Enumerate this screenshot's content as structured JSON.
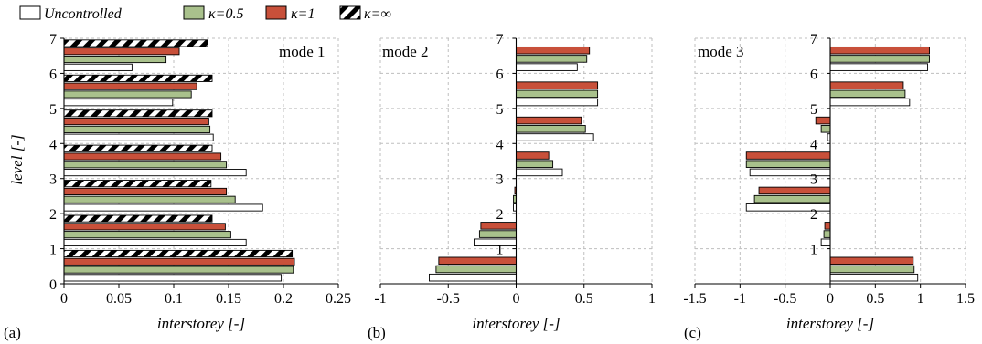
{
  "legend": [
    {
      "label": "Uncontrolled",
      "key": "uncontrolled"
    },
    {
      "label": "κ=0.5",
      "key": "k05"
    },
    {
      "label": "κ=1",
      "key": "k1"
    },
    {
      "label": "κ=∞",
      "key": "kinf"
    }
  ],
  "colors": {
    "uncontrolled": "#ffffff",
    "k05": "#a9c18c",
    "k1": "#c8503a",
    "kinf": "#ffffff",
    "grid": "#bfbfbf",
    "stroke": "#000000"
  },
  "shared_ylabel": "level [-]",
  "chart_data": [
    {
      "type": "bar",
      "orientation": "horizontal",
      "panel_label": "(a)",
      "title": "mode 1",
      "xlabel": "interstorey [-]",
      "xlim": [
        0,
        0.25
      ],
      "xticks": [
        "0",
        "0.05",
        "0.1",
        "0.15",
        "0.2",
        "0.25"
      ],
      "ylim": [
        0,
        7
      ],
      "yticks": [
        "0",
        "1",
        "2",
        "3",
        "4",
        "5",
        "6",
        "7"
      ],
      "categories": [
        "1",
        "2",
        "3",
        "4",
        "5",
        "6",
        "7"
      ],
      "series": [
        {
          "name": "Uncontrolled",
          "key": "uncontrolled",
          "values": [
            0.198,
            0.166,
            0.181,
            0.166,
            0.136,
            0.099,
            0.062
          ]
        },
        {
          "name": "κ=0.5",
          "key": "k05",
          "values": [
            0.209,
            0.152,
            0.156,
            0.148,
            0.133,
            0.116,
            0.093
          ]
        },
        {
          "name": "κ=1",
          "key": "k1",
          "values": [
            0.21,
            0.147,
            0.148,
            0.143,
            0.132,
            0.121,
            0.105
          ]
        },
        {
          "name": "κ=∞",
          "key": "kinf",
          "values": [
            0.208,
            0.135,
            0.134,
            0.135,
            0.135,
            0.135,
            0.131
          ]
        }
      ]
    },
    {
      "type": "bar",
      "orientation": "horizontal",
      "panel_label": "(b)",
      "title": "mode 2",
      "xlabel": "interstorey [-]",
      "xlim": [
        -1,
        1
      ],
      "xticks": [
        "-1",
        "-0.5",
        "0",
        "0.5",
        "1"
      ],
      "ylim": [
        0,
        7
      ],
      "yticks": [
        "1",
        "2",
        "3",
        "4",
        "5",
        "6",
        "7"
      ],
      "categories": [
        "1",
        "2",
        "3",
        "4",
        "5",
        "6",
        "7"
      ],
      "series": [
        {
          "name": "Uncontrolled",
          "key": "uncontrolled",
          "values": [
            -0.64,
            -0.31,
            -0.02,
            0.34,
            0.57,
            0.6,
            0.45
          ]
        },
        {
          "name": "κ=0.5",
          "key": "k05",
          "values": [
            -0.59,
            -0.27,
            -0.02,
            0.27,
            0.51,
            0.6,
            0.52
          ]
        },
        {
          "name": "κ=1",
          "key": "k1",
          "values": [
            -0.57,
            -0.26,
            -0.01,
            0.24,
            0.48,
            0.6,
            0.54
          ]
        }
      ]
    },
    {
      "type": "bar",
      "orientation": "horizontal",
      "panel_label": "(c)",
      "title": "mode 3",
      "xlabel": "interstorey [-]",
      "xlim": [
        -1.5,
        1.5
      ],
      "xticks": [
        "-1.5",
        "-1",
        "-0.5",
        "0",
        "0.5",
        "1",
        "1.5"
      ],
      "ylim": [
        0,
        7
      ],
      "yticks": [
        "1",
        "2",
        "3",
        "4",
        "5",
        "6",
        "7"
      ],
      "categories": [
        "1",
        "2",
        "3",
        "4",
        "5",
        "6",
        "7"
      ],
      "series": [
        {
          "name": "Uncontrolled",
          "key": "uncontrolled",
          "values": [
            0.97,
            -0.1,
            -0.93,
            -0.89,
            -0.03,
            0.88,
            1.08
          ]
        },
        {
          "name": "κ=0.5",
          "key": "k05",
          "values": [
            0.93,
            -0.07,
            -0.84,
            -0.93,
            -0.1,
            0.83,
            1.1
          ]
        },
        {
          "name": "κ=1",
          "key": "k1",
          "values": [
            0.92,
            -0.06,
            -0.79,
            -0.93,
            -0.16,
            0.81,
            1.1
          ]
        }
      ]
    }
  ]
}
